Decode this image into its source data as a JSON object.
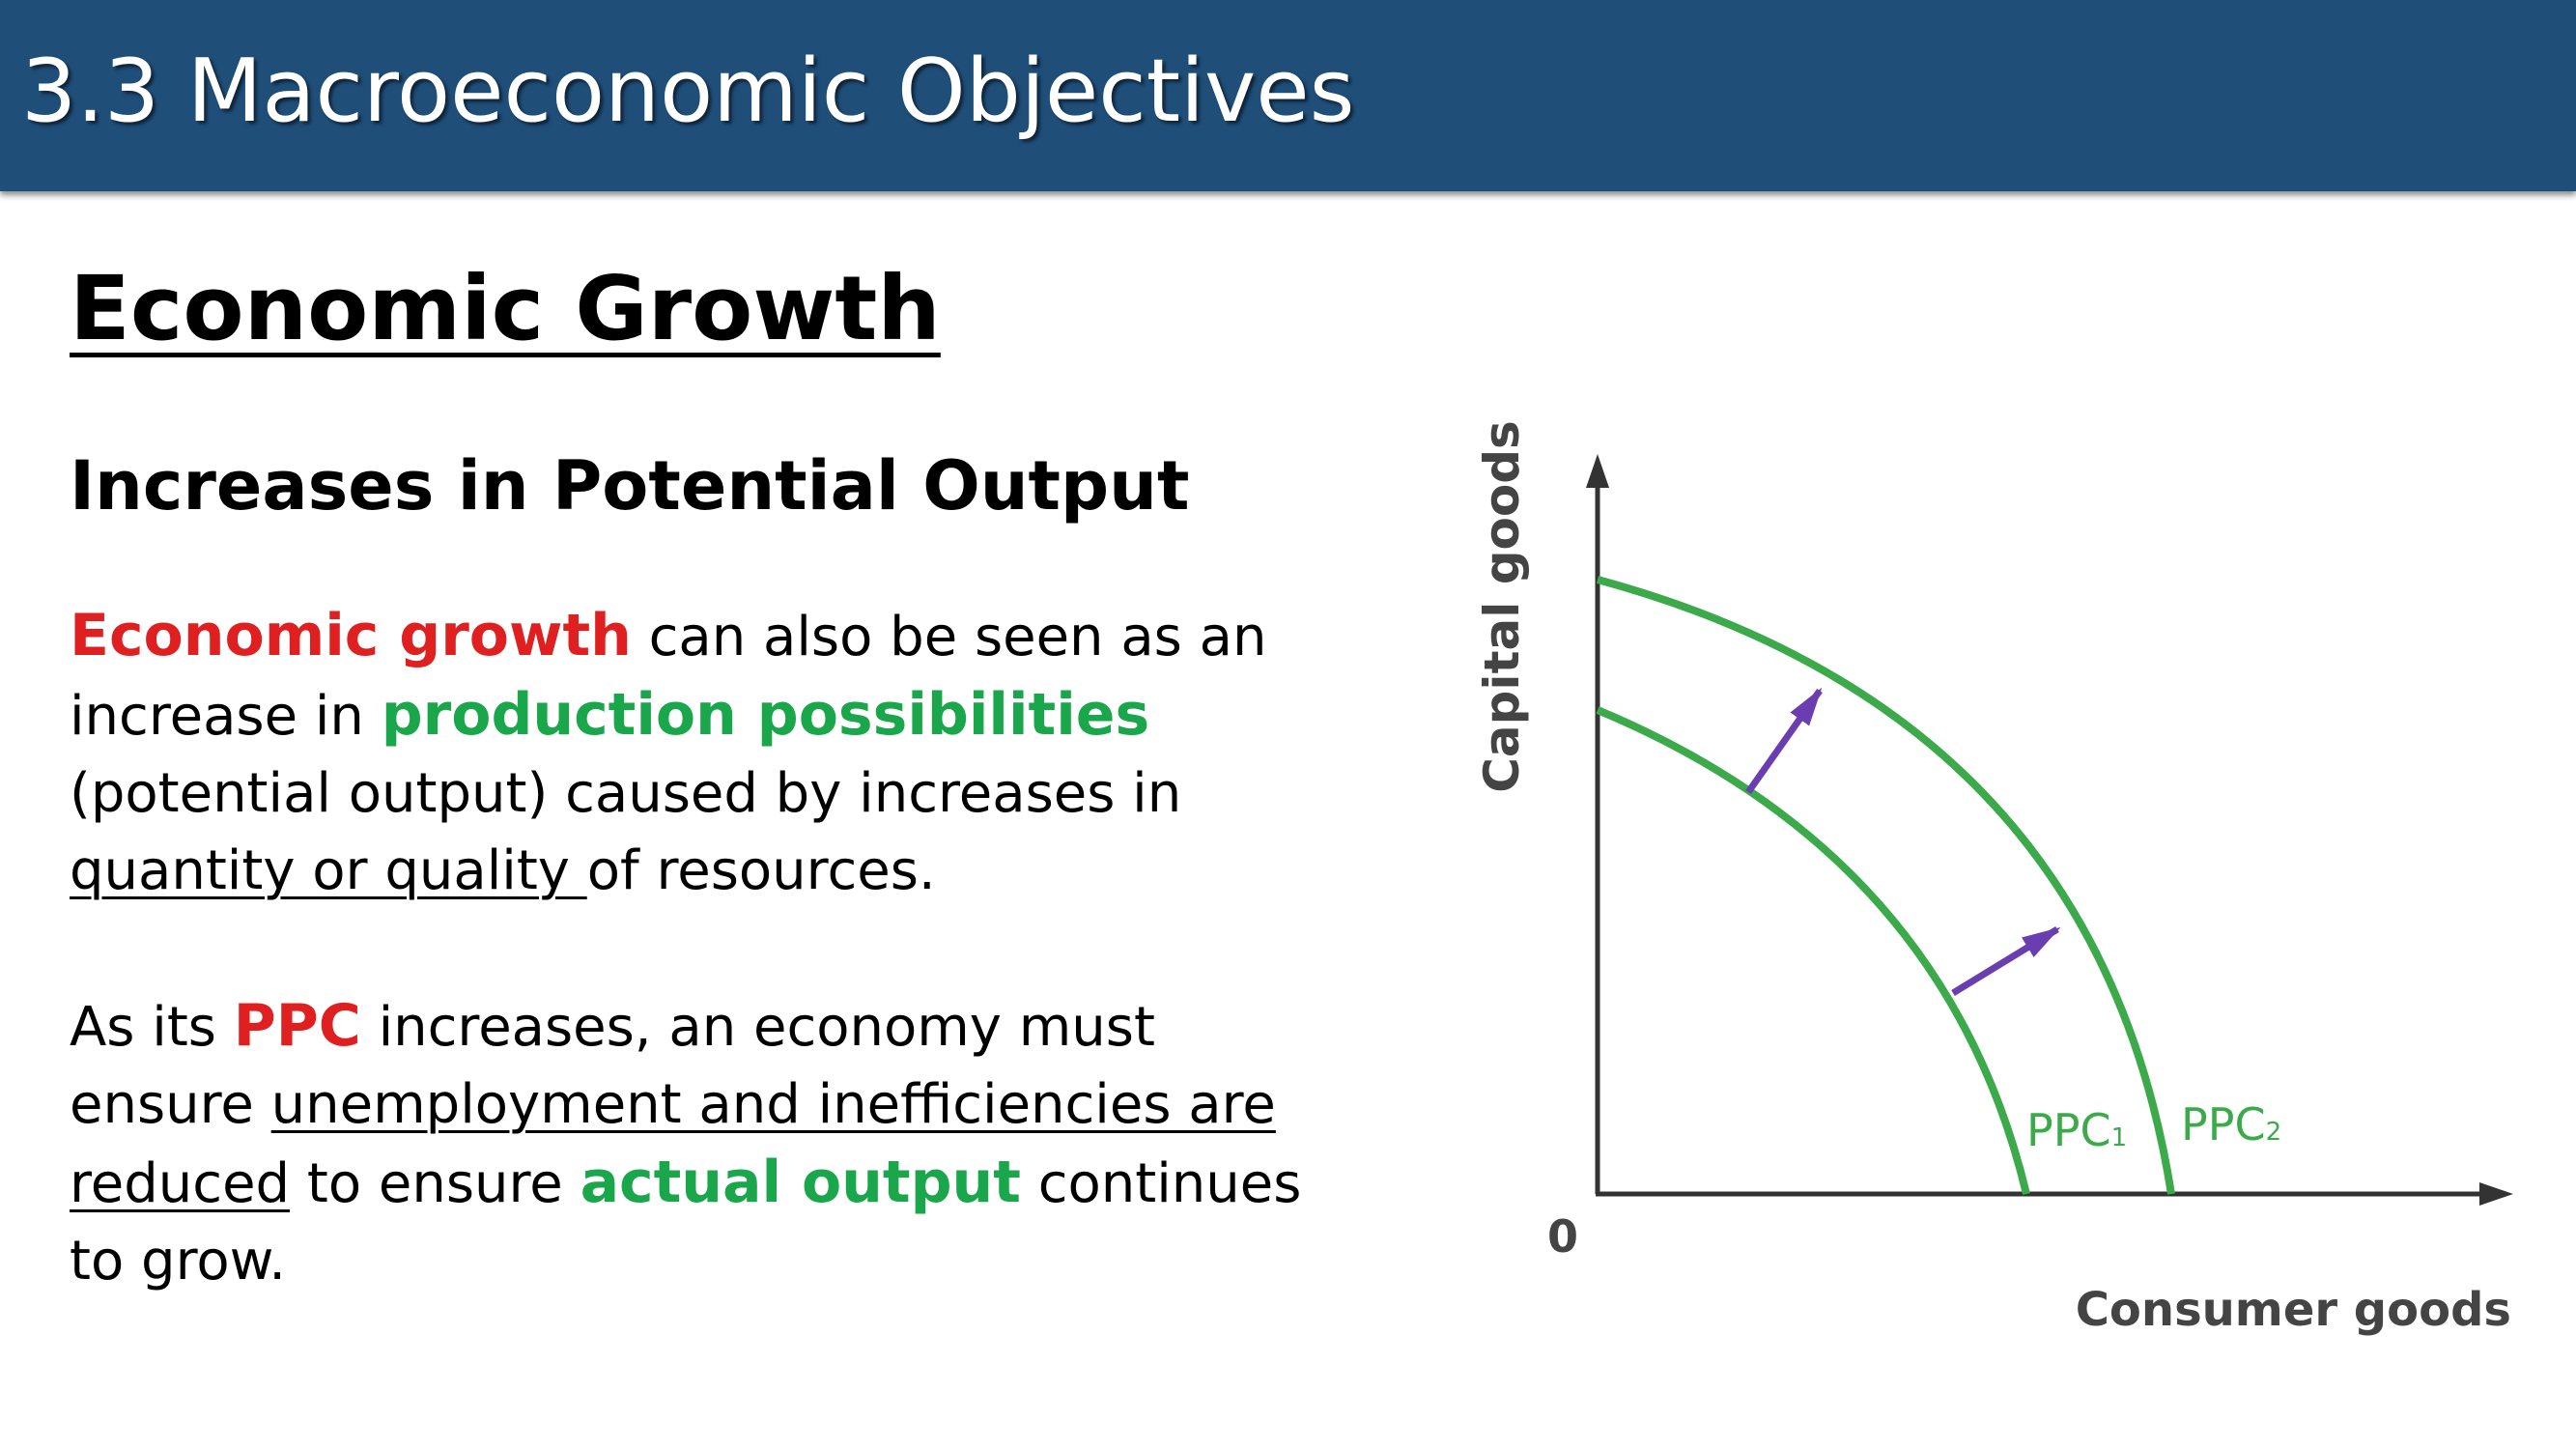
{
  "header": {
    "title": "3.3 Macroeconomic Objectives"
  },
  "heading": "Economic Growth",
  "subheading": "Increases in Potential Output",
  "paragraph1": {
    "t1": "Economic growth",
    "t2": " can also be seen as an increase in ",
    "t3": "production possibilities",
    "t4": " (potential output) caused by increases in ",
    "t5": "quantity or quality ",
    "t6": "of resources."
  },
  "paragraph2": {
    "t1": "As its ",
    "t2": "PPC",
    "t3": " increases, an economy must ensure ",
    "t4": "unemployment and inefficiencies are reduced",
    "t5": " to ensure ",
    "t6": "actual output",
    "t7": " continues to grow."
  },
  "diagram": {
    "y_axis_label": "Capital goods",
    "x_axis_label": "Consumer goods",
    "origin_label": "0",
    "curve1_label": "PPC",
    "curve1_sub": "1",
    "curve2_label": "PPC",
    "curve2_sub": "2",
    "curve_color": "#3caa4a",
    "arrow_color": "#6a3db0",
    "axis_color": "#333333"
  }
}
